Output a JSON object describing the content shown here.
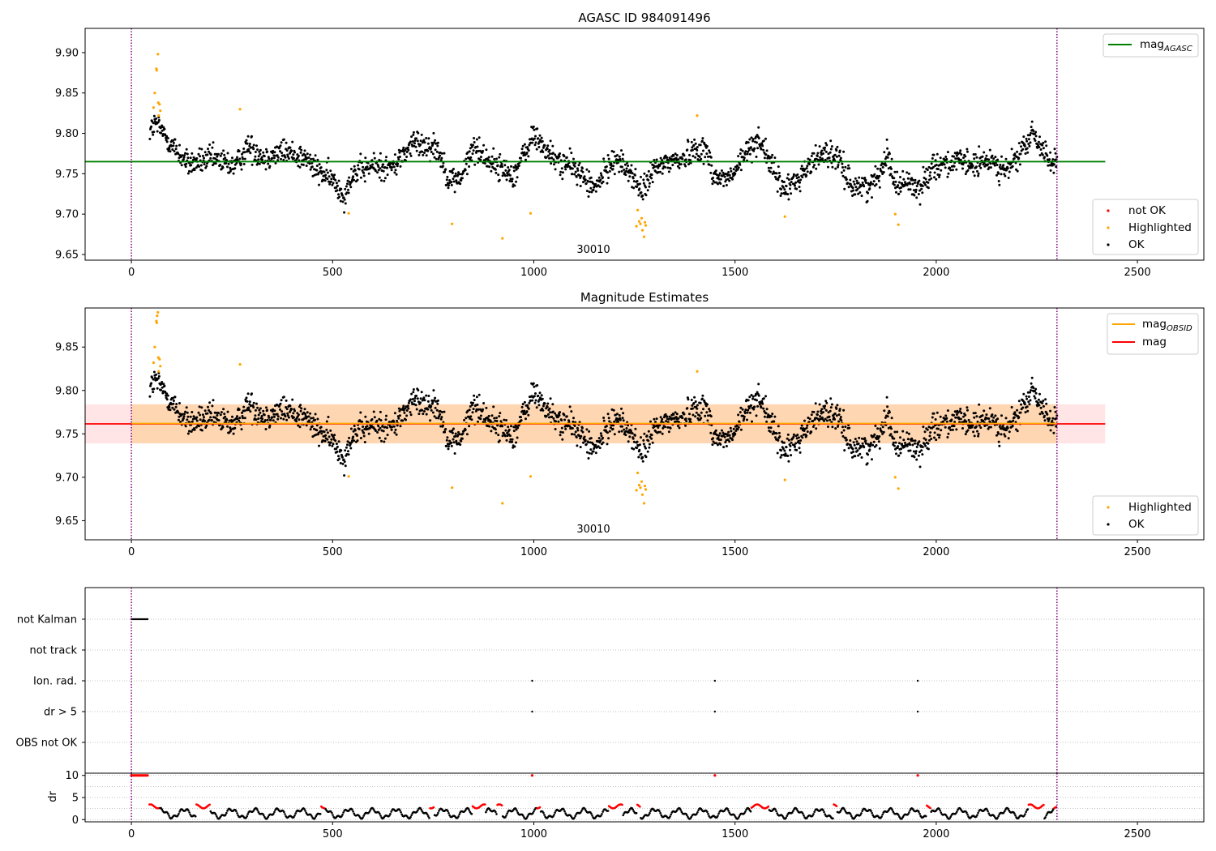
{
  "chart_data": [
    {
      "type": "scatter",
      "title": "AGASC ID 984091496",
      "annotation": "30010",
      "xlim": [
        -115,
        2665
      ],
      "ylim": [
        9.643,
        9.93
      ],
      "x_ticks": [
        0,
        500,
        1000,
        1500,
        2000,
        2500
      ],
      "y_ticks": [
        9.65,
        9.7,
        9.75,
        9.8,
        9.85,
        9.9
      ],
      "y_tick_labels": [
        "9.65",
        "9.70",
        "9.75",
        "9.80",
        "9.85",
        "9.90"
      ],
      "vlines": [
        0,
        2300
      ],
      "hlines": [
        {
          "name": "mag_AGASC",
          "y": 9.765,
          "x": [
            -115,
            2420
          ]
        }
      ],
      "legend_lines": [
        {
          "label": "mag",
          "sub": "AGASC",
          "color": "#008000"
        }
      ],
      "legend_points": [
        {
          "label": "not OK",
          "color": "#ff0000"
        },
        {
          "label": "Highlighted",
          "color": "#ffa500"
        },
        {
          "label": "OK",
          "color": "#000000"
        }
      ],
      "highlighted": [
        [
          55,
          9.832
        ],
        [
          58,
          9.85
        ],
        [
          62,
          9.88
        ],
        [
          63,
          9.878
        ],
        [
          66,
          9.898
        ],
        [
          67,
          9.838
        ],
        [
          70,
          9.836
        ],
        [
          72,
          9.828
        ],
        [
          68,
          9.822
        ],
        [
          270,
          9.83
        ],
        [
          540,
          9.701
        ],
        [
          797,
          9.688
        ],
        [
          922,
          9.67
        ],
        [
          992,
          9.701
        ],
        [
          1255,
          9.685
        ],
        [
          1258,
          9.705
        ],
        [
          1262,
          9.691
        ],
        [
          1265,
          9.688
        ],
        [
          1268,
          9.695
        ],
        [
          1270,
          9.68
        ],
        [
          1274,
          9.672
        ],
        [
          1276,
          9.69
        ],
        [
          1278,
          9.686
        ],
        [
          1406,
          9.822
        ],
        [
          1624,
          9.697
        ],
        [
          1898,
          9.7
        ],
        [
          1906,
          9.687
        ]
      ]
    },
    {
      "type": "scatter",
      "title": "Magnitude Estimates",
      "annotation": "30010",
      "xlim": [
        -115,
        2665
      ],
      "ylim": [
        9.628,
        9.895
      ],
      "x_ticks": [
        0,
        500,
        1000,
        1500,
        2000,
        2500
      ],
      "y_ticks": [
        9.65,
        9.7,
        9.75,
        9.8,
        9.85
      ],
      "y_tick_labels": [
        "9.65",
        "9.70",
        "9.75",
        "9.80",
        "9.85"
      ],
      "vlines": [
        0,
        2300
      ],
      "mag": 9.7615,
      "mag_band": [
        9.739,
        9.784
      ],
      "mag_obsid": 9.762,
      "mag_obsid_band": [
        9.739,
        9.784
      ],
      "legend_lines": [
        {
          "label": "mag",
          "sub": "OBSID",
          "color": "#ffa500"
        },
        {
          "label": "mag",
          "sub": "",
          "color": "#ff0000"
        }
      ],
      "legend_points": [
        {
          "label": "Highlighted",
          "color": "#ffa500"
        },
        {
          "label": "OK",
          "color": "#000000"
        }
      ],
      "highlighted": [
        [
          55,
          9.832
        ],
        [
          58,
          9.85
        ],
        [
          62,
          9.88
        ],
        [
          63,
          9.878
        ],
        [
          66,
          9.89
        ],
        [
          64,
          9.886
        ],
        [
          67,
          9.838
        ],
        [
          70,
          9.836
        ],
        [
          72,
          9.828
        ],
        [
          68,
          9.822
        ],
        [
          270,
          9.83
        ],
        [
          540,
          9.701
        ],
        [
          797,
          9.688
        ],
        [
          922,
          9.67
        ],
        [
          992,
          9.701
        ],
        [
          1255,
          9.685
        ],
        [
          1258,
          9.705
        ],
        [
          1262,
          9.691
        ],
        [
          1265,
          9.688
        ],
        [
          1268,
          9.695
        ],
        [
          1270,
          9.68
        ],
        [
          1274,
          9.67
        ],
        [
          1276,
          9.69
        ],
        [
          1278,
          9.686
        ],
        [
          1406,
          9.822
        ],
        [
          1624,
          9.697
        ],
        [
          1898,
          9.7
        ],
        [
          1906,
          9.687
        ]
      ]
    },
    {
      "type": "scatter",
      "title": "",
      "xlim": [
        -115,
        2665
      ],
      "categories": [
        "not Kalman",
        "not track",
        "Ion. rad.",
        "dr > 5",
        "OBS not OK"
      ],
      "flag_points": {
        "not Kalman": [
          0,
          4,
          8,
          12,
          16,
          20,
          24,
          28,
          32,
          36,
          40
        ],
        "not track": [],
        "Ion. rad.": [
          996,
          1450,
          1954
        ],
        "dr > 5": [
          996,
          1450,
          1954
        ],
        "OBS not OK": []
      },
      "vlines": [
        0,
        2300
      ]
    },
    {
      "type": "scatter",
      "title": "",
      "ylabel": "dr",
      "xlim": [
        -115,
        2665
      ],
      "ylim": [
        -0.5,
        10.5
      ],
      "x_ticks": [
        0,
        500,
        1000,
        1500,
        2000,
        2500
      ],
      "y_ticks": [
        0,
        5,
        10
      ],
      "y_tick_labels": [
        "0",
        "5",
        "10"
      ],
      "gridlines": [
        0,
        2.5,
        5,
        7.5,
        10
      ],
      "vlines": [
        0,
        2300
      ],
      "high_dr_x": [
        0,
        4,
        8,
        12,
        16,
        20,
        24,
        28,
        32,
        36,
        40,
        996,
        1450,
        1954
      ],
      "high_dr_value": 10,
      "red_segments": [
        [
          45,
          70
        ],
        [
          160,
          195
        ],
        [
          470,
          482
        ],
        [
          742,
          752
        ],
        [
          848,
          880
        ],
        [
          908,
          922
        ],
        [
          1008,
          1016
        ],
        [
          1185,
          1222
        ],
        [
          1257,
          1266
        ],
        [
          1540,
          1584
        ],
        [
          1744,
          1754
        ],
        [
          1975,
          1986
        ],
        [
          2228,
          2268
        ],
        [
          2292,
          2300
        ]
      ]
    }
  ]
}
